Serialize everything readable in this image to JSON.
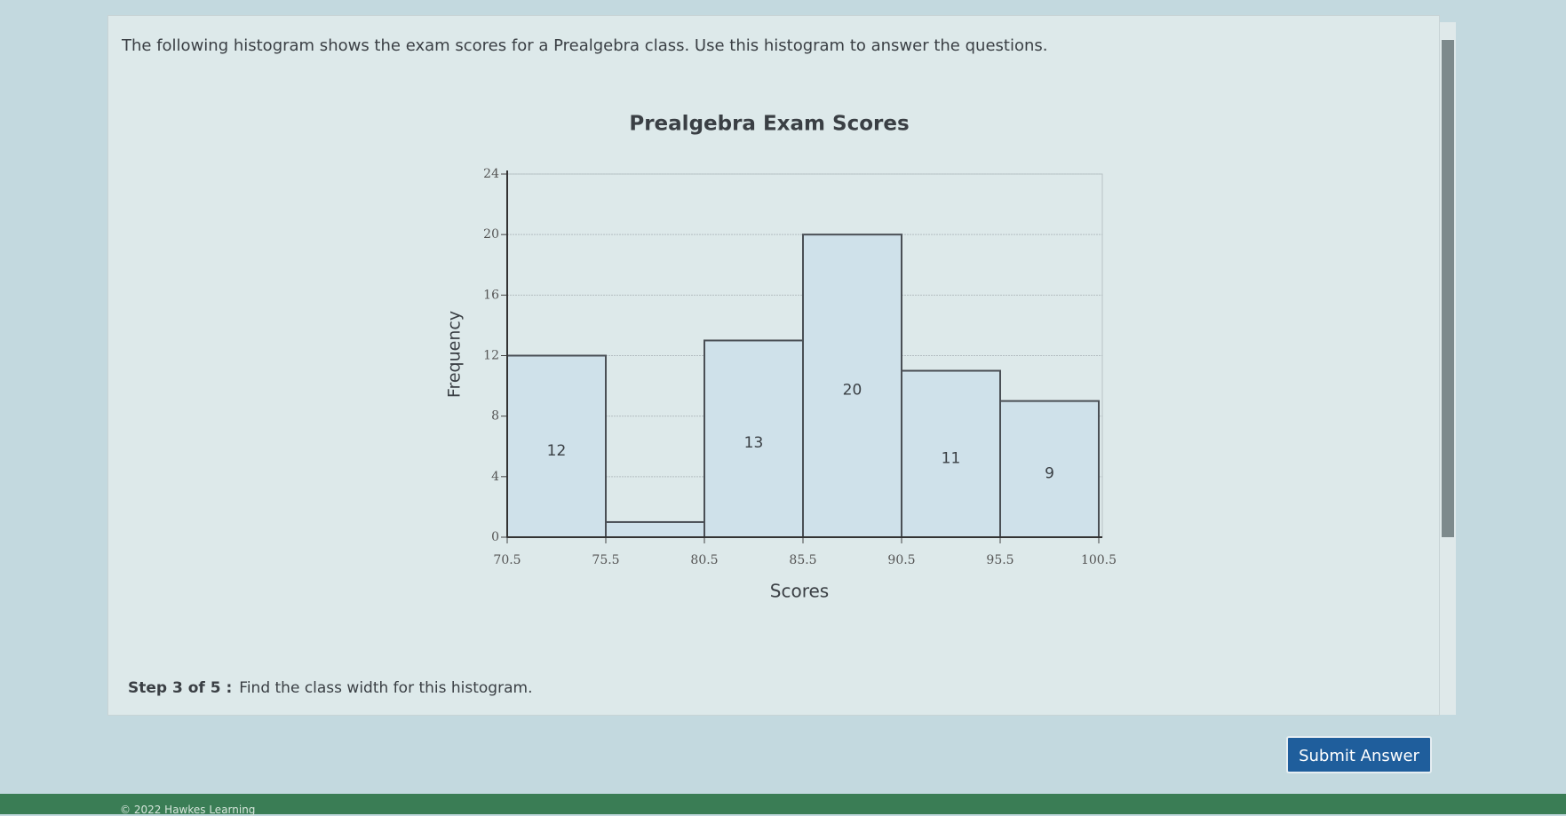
{
  "question": "The following histogram shows the exam scores for a Prealgebra class. Use this histogram to answer the questions.",
  "chart_data": {
    "type": "histogram",
    "title": "Prealgebra Exam Scores",
    "x_label": "Scores",
    "y_label": "Frequency",
    "bins": [
      70.5,
      75.5,
      80.5,
      85.5,
      90.5,
      95.5,
      100.5
    ],
    "values": [
      12,
      1,
      13,
      20,
      11,
      9
    ],
    "value_labels": [
      "12",
      null,
      "13",
      "20",
      "11",
      "9"
    ],
    "color": "#cfe1ea",
    "xlim": [
      70.5,
      100.5
    ],
    "ylim": [
      0,
      24
    ],
    "yticks": [
      0,
      4,
      8,
      12,
      16,
      20,
      24
    ],
    "grid": true
  },
  "step": {
    "label": "Step 3 of 5 :",
    "text": "Find the class width for this histogram."
  },
  "button": "Submit Answer",
  "footer": "© 2022 Hawkes Learning"
}
